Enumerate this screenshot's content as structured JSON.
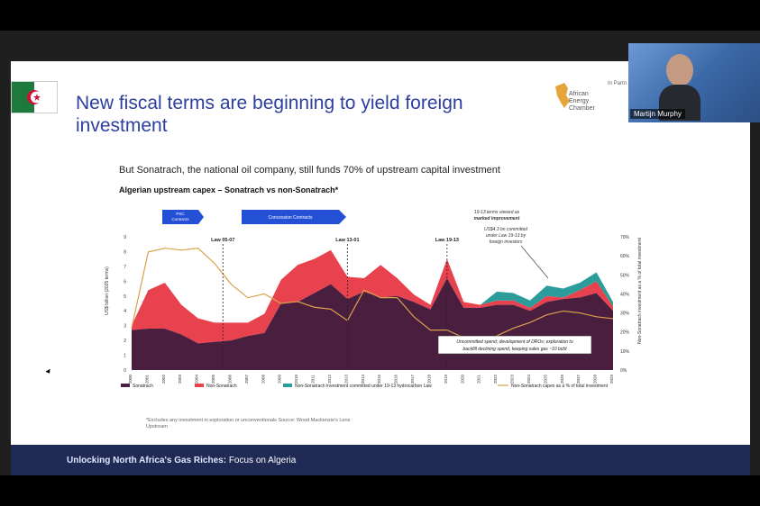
{
  "slide": {
    "title": "New fiscal terms are beginning to yield foreign investment",
    "subtitle": "But Sonatrach, the national oil company, still funds 70% of upstream capital investment",
    "chart_title": "Algerian upstream capex – Sonatrach vs non-Sonatrach*",
    "footnote": "*Excludes any investment in exploration or unconventionals Source: Wood Mackenzie's Lens Upstream",
    "footer_bold": "Unlocking North Africa's Gas Riches:",
    "footer_rest": " Focus on Algeria",
    "logo_text": [
      "African",
      "Energy",
      "Chamber"
    ],
    "partner_text": "In Partn",
    "colors": {
      "title": "#2c3f9e",
      "footer": "#1f2b55",
      "sonatrach": "#4a1e3f",
      "non_sonatrach": "#e8424f",
      "teal": "#2a9d9a",
      "line": "#d9a14a"
    }
  },
  "video": {
    "participant_name": "Martijn Murphy"
  },
  "chart_data": {
    "type": "area",
    "title": "Algerian upstream capex – Sonatrach vs non-Sonatrach*",
    "ylabel": "US$ billion (2025 terms)",
    "y2label": "Non-Sonatrach investment as a % of total investment",
    "x": [
      "2000",
      "2001",
      "2002",
      "2003",
      "2004",
      "2005",
      "2006",
      "2007",
      "2008",
      "2009",
      "2010",
      "2011",
      "2012",
      "2013",
      "2014",
      "2015",
      "2016",
      "2017",
      "2018",
      "2019",
      "2020",
      "2021",
      "2022",
      "2023",
      "2024",
      "2025",
      "2026",
      "2027",
      "2028",
      "2029"
    ],
    "ylim": [
      0,
      9
    ],
    "y2lim": [
      0,
      70
    ],
    "yticks": [
      "0",
      "1",
      "2",
      "3",
      "4",
      "5",
      "6",
      "7",
      "8",
      "9"
    ],
    "y2ticks": [
      "0%",
      "10%",
      "20%",
      "30%",
      "40%",
      "50%",
      "60%",
      "70%"
    ],
    "series": [
      {
        "name": "Sonatrach",
        "values": [
          2.7,
          2.8,
          2.8,
          2.4,
          1.8,
          1.9,
          2.0,
          2.3,
          2.5,
          4.5,
          4.6,
          5.2,
          5.8,
          4.8,
          5.3,
          4.9,
          5.0,
          4.6,
          4.1,
          6.2,
          4.2,
          4.2,
          4.4,
          4.4,
          4.0,
          4.6,
          4.8,
          4.9,
          5.2,
          4.0
        ]
      },
      {
        "name": "Non-Sonatrach",
        "values": [
          0.3,
          2.6,
          3.1,
          2.0,
          1.7,
          1.3,
          1.2,
          0.9,
          1.3,
          1.6,
          2.5,
          2.3,
          2.3,
          1.5,
          0.9,
          2.2,
          1.2,
          0.5,
          0.3,
          1.3,
          0.4,
          0.2,
          0.3,
          0.3,
          0.2,
          0.4,
          0.1,
          0.5,
          0.8,
          0.3
        ]
      },
      {
        "name": "Non-Sonatrach investment committed under 19-13 hydrocarbon Law",
        "values": [
          0,
          0,
          0,
          0,
          0,
          0,
          0,
          0,
          0,
          0,
          0,
          0,
          0,
          0,
          0,
          0,
          0,
          0,
          0,
          0,
          0,
          0,
          0.6,
          0.5,
          0.5,
          0.7,
          0.6,
          0.5,
          0.6,
          0.3
        ]
      },
      {
        "name": "Non-Sonatrach capex as a % of total investment",
        "axis": "right",
        "values": [
          22,
          62,
          64,
          63,
          64,
          56,
          45,
          38,
          40,
          35,
          36,
          33,
          32,
          26,
          42,
          38,
          38,
          28,
          21,
          21,
          17,
          13,
          18,
          22,
          25,
          29,
          31,
          30,
          28,
          27
        ]
      }
    ],
    "legend": [
      "Sonatrach",
      "Non-Sonatrach",
      "Non-Sonatrach investment committed under 19-13 hydrocarbon Law",
      "Non-Sonatrach capex as a % of total investment"
    ],
    "legend_position": "bottom",
    "annotations": {
      "psc": "PSC Contracts",
      "concession": "Concession Contracts",
      "law1": "Law 05-07",
      "law2": "Law 13-01",
      "law3": "Law 19-13",
      "improvement_1": "19-13 terms viewed as",
      "improvement_2": "marked improvement",
      "committed_1": "US$4.3 bn committed",
      "committed_2": "under Law 19-13 by",
      "committed_3": "foreign investors",
      "uncommitted_1": "Uncommitted spend; development of DROs; exploration to",
      "uncommitted_2": "backfill declining spend, keeping sales gas ~10 bcfd"
    }
  }
}
